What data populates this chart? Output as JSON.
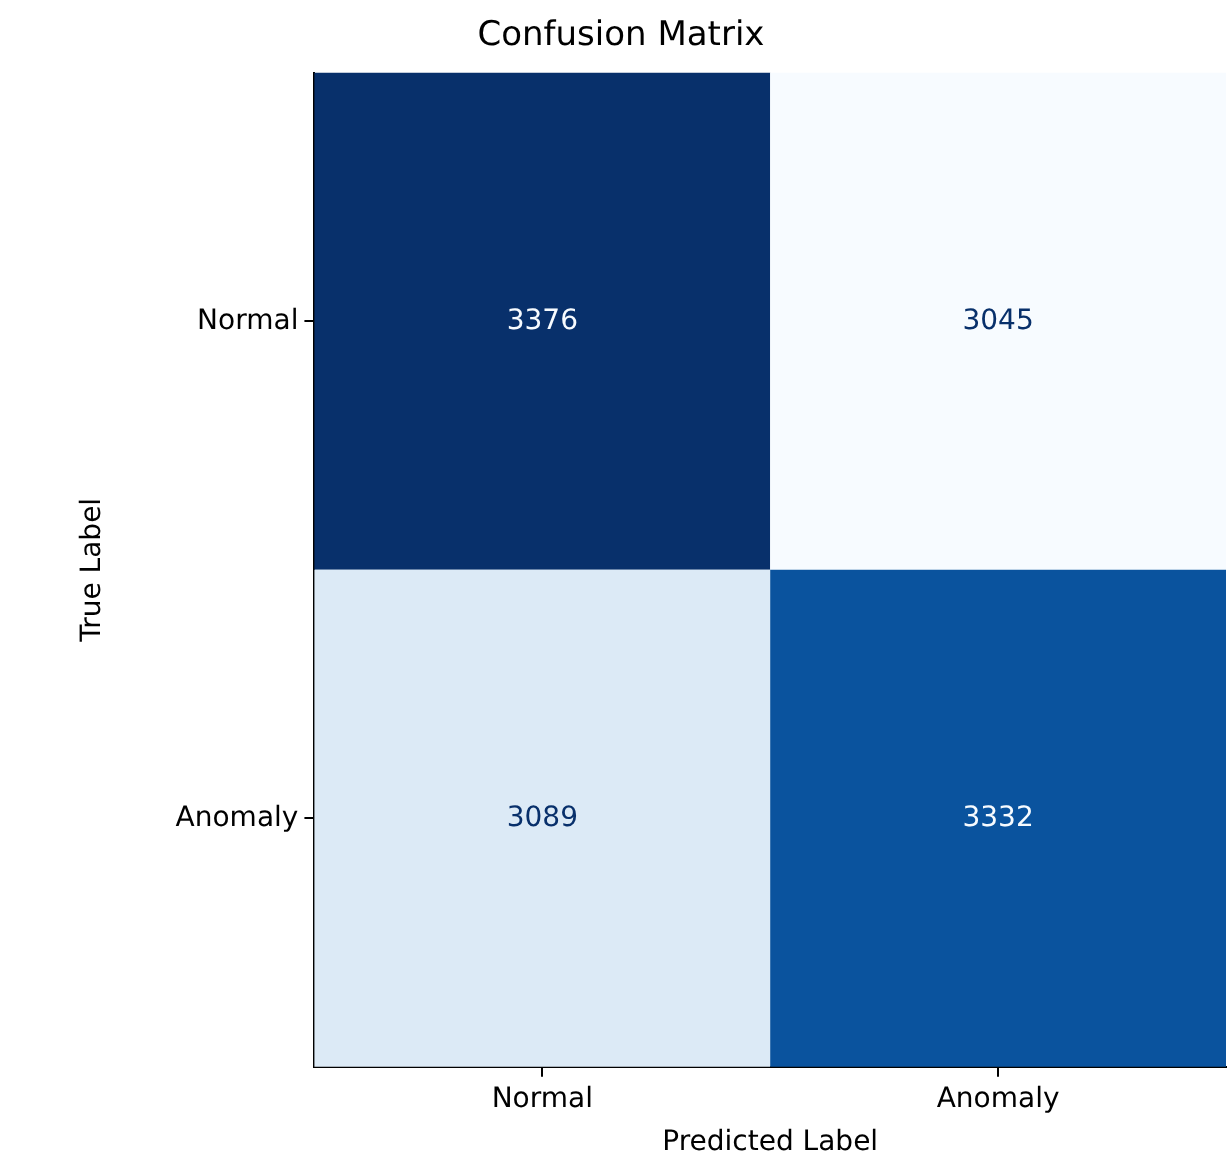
{
  "chart_data": {
    "type": "heatmap",
    "title": "Confusion Matrix",
    "xlabel": "Predicted Label",
    "ylabel": "True Label",
    "data_labels": true,
    "categories": [
      "Normal",
      "Anomaly"
    ],
    "y_categories": [
      "Normal",
      "Anomaly"
    ],
    "cells": [
      [
        3376,
        3045
      ],
      [
        3089,
        3332
      ]
    ]
  }
}
